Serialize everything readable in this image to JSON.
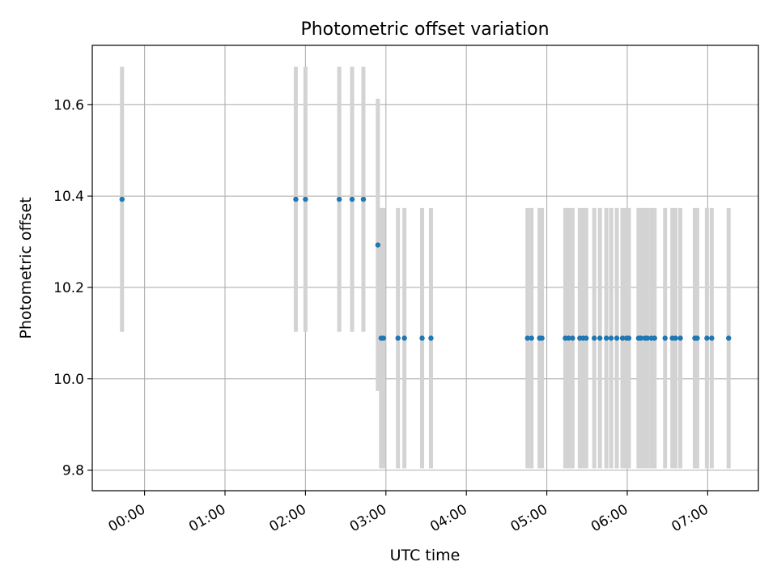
{
  "chart_data": {
    "type": "scatter",
    "title": "Photometric offset variation",
    "xlabel": "UTC time",
    "ylabel": "Photometric offset",
    "x_tick_labels": [
      "00:00",
      "01:00",
      "02:00",
      "03:00",
      "04:00",
      "05:00",
      "06:00",
      "07:00"
    ],
    "x_ticks_hours": [
      0,
      1,
      2,
      3,
      4,
      5,
      6,
      7
    ],
    "y_tick_labels": [
      "9.8",
      "10.0",
      "10.2",
      "10.4",
      "10.6"
    ],
    "y_ticks": [
      9.8,
      10.0,
      10.2,
      10.4,
      10.6
    ],
    "xlim_hours": [
      -0.65,
      7.63
    ],
    "ylim": [
      9.755,
      10.73
    ],
    "grid": true,
    "point_color": "#1f77b4",
    "errorbar_color": "#d3d3d3",
    "series": [
      {
        "x_hours": [
          -0.28,
          1.88,
          2.0,
          2.42,
          2.58,
          2.72
        ],
        "y": [
          10.393,
          10.393,
          10.393,
          10.393,
          10.393,
          10.393
        ],
        "yerr": [
          0.29,
          0.29,
          0.29,
          0.29,
          0.29,
          0.29
        ]
      },
      {
        "x_hours": [
          2.9
        ],
        "y": [
          10.293
        ],
        "yerr": [
          0.32
        ]
      },
      {
        "x_hours": [
          2.94,
          2.97,
          3.15,
          3.23,
          3.45,
          3.56,
          4.76,
          4.81,
          4.91,
          4.94,
          5.23,
          5.27,
          5.32,
          5.41,
          5.45,
          5.49,
          5.59,
          5.66,
          5.74,
          5.8,
          5.87,
          5.94,
          5.99,
          6.02,
          6.14,
          6.17,
          6.22,
          6.25,
          6.3,
          6.34,
          6.47,
          6.56,
          6.6,
          6.66,
          6.84,
          6.87,
          6.99,
          7.05,
          7.26
        ],
        "y": [
          10.089,
          10.089,
          10.089,
          10.089,
          10.089,
          10.089,
          10.089,
          10.089,
          10.089,
          10.089,
          10.089,
          10.089,
          10.089,
          10.089,
          10.089,
          10.089,
          10.089,
          10.089,
          10.089,
          10.089,
          10.089,
          10.089,
          10.089,
          10.089,
          10.089,
          10.089,
          10.089,
          10.089,
          10.089,
          10.089,
          10.089,
          10.089,
          10.089,
          10.089,
          10.089,
          10.089,
          10.089,
          10.089,
          10.089
        ],
        "yerr": [
          0.285,
          0.285,
          0.285,
          0.285,
          0.285,
          0.285,
          0.285,
          0.285,
          0.285,
          0.285,
          0.285,
          0.285,
          0.285,
          0.285,
          0.285,
          0.285,
          0.285,
          0.285,
          0.285,
          0.285,
          0.285,
          0.285,
          0.285,
          0.285,
          0.285,
          0.285,
          0.285,
          0.285,
          0.285,
          0.285,
          0.285,
          0.285,
          0.285,
          0.285,
          0.285,
          0.285,
          0.285,
          0.285,
          0.285
        ]
      }
    ]
  }
}
